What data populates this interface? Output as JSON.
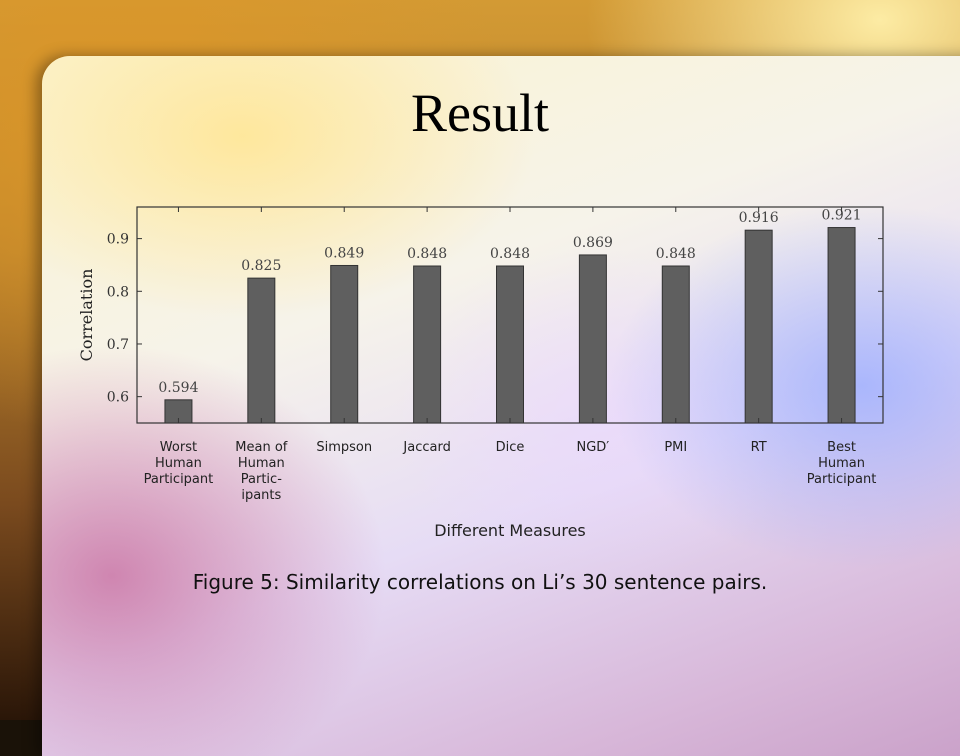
{
  "slide": {
    "title": "Result"
  },
  "figure": {
    "caption": "Figure 5: Similarity correlations on Li’s 30 sentence pairs."
  },
  "chart_data": {
    "type": "bar",
    "categories": [
      [
        "Worst",
        "Human",
        "Participant"
      ],
      [
        "Mean of",
        "Human",
        "Partic-",
        "ipants"
      ],
      [
        "Simpson"
      ],
      [
        "Jaccard"
      ],
      [
        "Dice"
      ],
      [
        "NGD′"
      ],
      [
        "PMI"
      ],
      [
        "RT"
      ],
      [
        "Best",
        "Human",
        "Participant"
      ]
    ],
    "values": [
      0.594,
      0.825,
      0.849,
      0.848,
      0.848,
      0.869,
      0.848,
      0.916,
      0.921
    ],
    "value_labels": [
      "0.594",
      "0.825",
      "0.849",
      "0.848",
      "0.848",
      "0.869",
      "0.848",
      "0.916",
      "0.921"
    ],
    "xlabel": "Different Measures",
    "ylabel": "Correlation",
    "ylim": [
      0.55,
      0.96
    ],
    "yticks": [
      0.6,
      0.7,
      0.8,
      0.9
    ],
    "ytick_labels": [
      "0.6",
      "0.7",
      "0.8",
      "0.9"
    ],
    "grid": false,
    "bar_color": "#5f5f5f"
  }
}
